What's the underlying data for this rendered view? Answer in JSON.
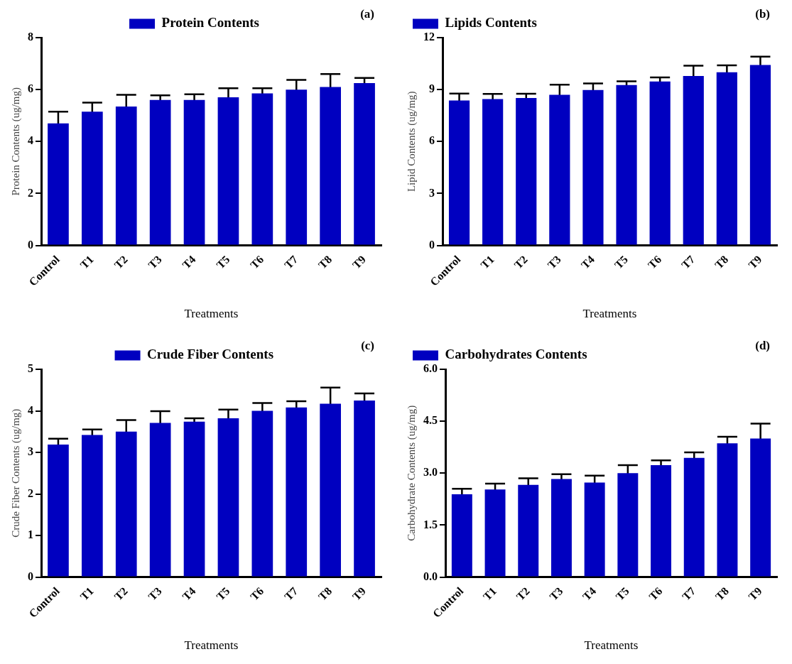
{
  "chart_data": [
    {
      "type": "bar",
      "categories": [
        "Control",
        "T1",
        "T2",
        "T3",
        "T4",
        "T5",
        "T6",
        "T7",
        "T8",
        "T9"
      ],
      "series": [
        {
          "name": "Protein Contents",
          "color": "#0000c0",
          "values": [
            4.7,
            5.15,
            5.35,
            5.6,
            5.6,
            5.7,
            5.85,
            6.0,
            6.1,
            6.25
          ],
          "errors": [
            0.45,
            0.35,
            0.45,
            0.18,
            0.22,
            0.35,
            0.2,
            0.37,
            0.5,
            0.2
          ]
        }
      ],
      "ylim": [
        0,
        8
      ],
      "yticks": [
        0,
        2,
        4,
        6,
        8
      ],
      "xlabel": "Treatments",
      "ylabel": "Protein Contents (ug/mg)",
      "annotations": [
        "(a)"
      ],
      "legend": "top",
      "grid": false
    },
    {
      "type": "bar",
      "categories": [
        "Control",
        "T1",
        "T2",
        "T3",
        "T4",
        "T5",
        "T6",
        "T7",
        "T8",
        "T9"
      ],
      "series": [
        {
          "name": "Lipids Contents",
          "color": "#0000c0",
          "values": [
            8.37,
            8.45,
            8.51,
            8.7,
            8.97,
            9.26,
            9.47,
            9.78,
            10.0,
            10.42
          ],
          "errors": [
            0.4,
            0.3,
            0.25,
            0.58,
            0.38,
            0.22,
            0.23,
            0.6,
            0.4,
            0.48
          ]
        }
      ],
      "ylim": [
        0,
        12
      ],
      "yticks": [
        0,
        3,
        6,
        9,
        12
      ],
      "xlabel": "Treatments",
      "ylabel": "Lipid Contents (ug/mg)",
      "annotations": [
        "(b)"
      ],
      "legend": "top left",
      "grid": false
    },
    {
      "type": "bar",
      "categories": [
        "Control",
        "T1",
        "T2",
        "T3",
        "T4",
        "T5",
        "T6",
        "T7",
        "T8",
        "T9"
      ],
      "series": [
        {
          "name": "Crude Fiber Contents",
          "color": "#0000c0",
          "values": [
            3.19,
            3.42,
            3.5,
            3.71,
            3.74,
            3.82,
            4.0,
            4.08,
            4.17,
            4.25
          ],
          "errors": [
            0.14,
            0.13,
            0.28,
            0.28,
            0.08,
            0.21,
            0.19,
            0.15,
            0.39,
            0.17
          ]
        }
      ],
      "ylim": [
        0,
        5
      ],
      "yticks": [
        0,
        1,
        2,
        3,
        4,
        5
      ],
      "xlabel": "Treatments",
      "ylabel": "Crude Fiber Contents (ug/mg)",
      "annotations": [
        "(c)"
      ],
      "legend": "top",
      "grid": false
    },
    {
      "type": "bar",
      "categories": [
        "Control",
        "T1",
        "T2",
        "T3",
        "T4",
        "T5",
        "T6",
        "T7",
        "T8",
        "T9"
      ],
      "series": [
        {
          "name": "Carbohydrates Contents",
          "color": "#0000c0",
          "values": [
            2.39,
            2.53,
            2.66,
            2.83,
            2.73,
            3.0,
            3.23,
            3.44,
            3.86,
            4.0
          ],
          "errors": [
            0.16,
            0.17,
            0.19,
            0.14,
            0.2,
            0.23,
            0.14,
            0.16,
            0.19,
            0.43
          ]
        }
      ],
      "ylim": [
        0,
        6
      ],
      "yticks": [
        {
          "value": 0,
          "label": "0.0"
        },
        {
          "value": 1.5,
          "label": "1.5"
        },
        {
          "value": 3,
          "label": "3.0"
        },
        {
          "value": 4.5,
          "label": "4.5"
        },
        {
          "value": 6,
          "label": "6.0"
        }
      ],
      "xlabel": "Treatments",
      "ylabel": "Carbohydrate Contents (ug/mg)",
      "annotations": [
        "(d)"
      ],
      "legend": "top left",
      "grid": false
    }
  ]
}
